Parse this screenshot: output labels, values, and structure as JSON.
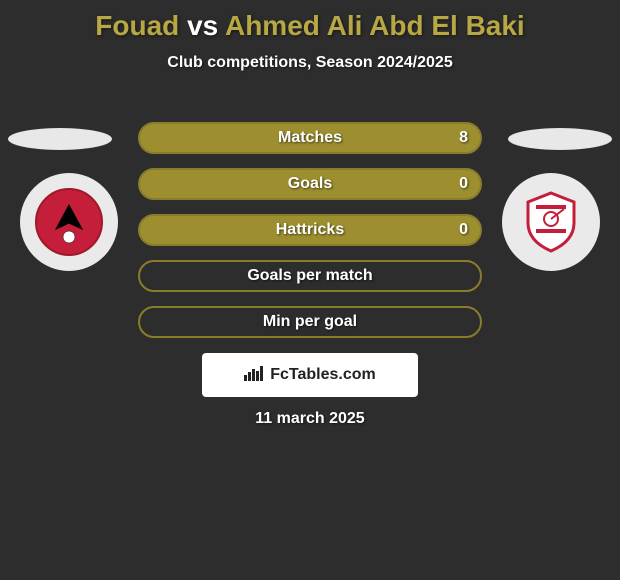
{
  "header": {
    "player1": "Fouad",
    "vs": "vs",
    "player2": "Ahmed Ali Abd El Baki",
    "subtitle": "Club competitions, Season 2024/2025"
  },
  "players": {
    "left": {
      "name": "Fouad",
      "club_color_primary": "#c41e3a",
      "club_color_secondary": "#000000"
    },
    "right": {
      "name": "Ahmed Ali Abd El Baki",
      "club_color_primary": "#ffffff",
      "club_color_secondary": "#c41e3a"
    }
  },
  "stats": {
    "rows": [
      {
        "label": "Matches",
        "left": "",
        "right": "8",
        "fill_color": "#9d8f2f",
        "border_color": "#8a7d29"
      },
      {
        "label": "Goals",
        "left": "",
        "right": "0",
        "fill_color": "#9d8f2f",
        "border_color": "#8a7d29"
      },
      {
        "label": "Hattricks",
        "left": "",
        "right": "0",
        "fill_color": "#9d8f2f",
        "border_color": "#8a7d29"
      },
      {
        "label": "Goals per match",
        "left": "",
        "right": "",
        "fill_color": "transparent",
        "border_color": "#8a7d29"
      },
      {
        "label": "Min per goal",
        "left": "",
        "right": "",
        "fill_color": "transparent",
        "border_color": "#8a7d29"
      }
    ]
  },
  "branding": {
    "text": "FcTables.com"
  },
  "date": "11 march 2025",
  "colors": {
    "background": "#2d2d2d",
    "accent": "#b8a843",
    "text": "#ffffff"
  }
}
